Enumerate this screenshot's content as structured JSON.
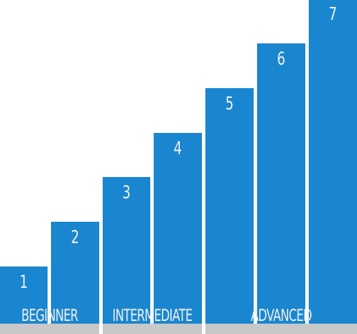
{
  "steps": [
    "1",
    "2",
    "3",
    "4",
    "5",
    "6",
    "7"
  ],
  "levels": [
    "BEGINNER",
    "INTERMEDIATE",
    "ADVANCED"
  ],
  "colors": {
    "step": "#1a86d0",
    "base": "#c8c8c8",
    "text": "#f2f2f2",
    "background": "#ffffff"
  }
}
